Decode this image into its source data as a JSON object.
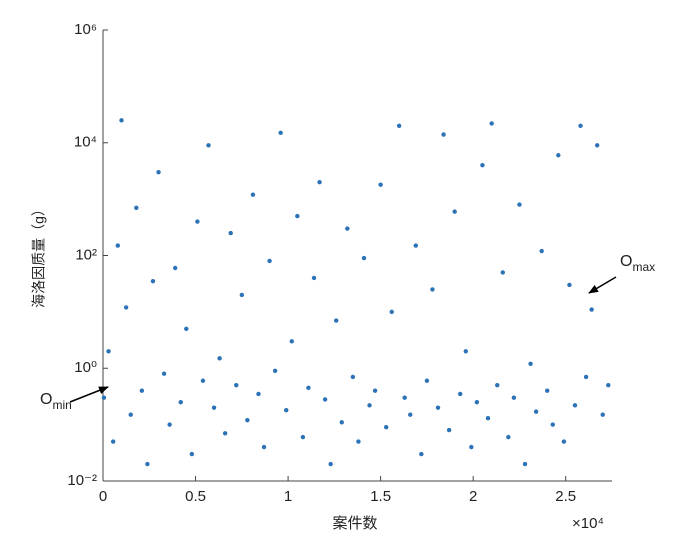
{
  "chart_data": {
    "type": "scatter",
    "xlabel": "案件数",
    "ylabel": "海洛因质量（g）",
    "x_multiplier": "×10⁴",
    "color": "#2c72b6",
    "log_y": true,
    "grid": false,
    "xlim": [
      0,
      27500
    ],
    "ylim": [
      0.01,
      1000000
    ],
    "xticks": [
      0,
      {
        "value": 5000,
        "label": "0.5"
      },
      {
        "value": 10000,
        "label": "1"
      },
      {
        "value": 15000,
        "label": "1.5"
      },
      {
        "value": 20000,
        "label": "2"
      },
      {
        "value": 25000,
        "label": "2.5"
      }
    ],
    "yticks": [
      {
        "value": 0.01,
        "label": "10⁻²"
      },
      {
        "value": 1,
        "label": "10⁰"
      },
      {
        "value": 100,
        "label": "10²"
      },
      {
        "value": 10000,
        "label": "10⁴"
      },
      {
        "value": 1000000,
        "label": "10⁶"
      }
    ],
    "annotations": [
      {
        "base": "O",
        "subscript": "min"
      },
      {
        "base": "O",
        "subscript": "max"
      }
    ],
    "x": [
      50,
      300,
      550,
      800,
      1000,
      1250,
      1500,
      1800,
      2100,
      2400,
      2700,
      3000,
      3300,
      3600,
      3900,
      4200,
      4500,
      4800,
      5100,
      5400,
      5700,
      6000,
      6300,
      6600,
      6900,
      7200,
      7500,
      7800,
      8100,
      8400,
      8700,
      9000,
      9300,
      9600,
      9900,
      10200,
      10500,
      10800,
      11100,
      11400,
      11700,
      12000,
      12300,
      12600,
      12900,
      13200,
      13500,
      13800,
      14100,
      14400,
      14700,
      15000,
      15300,
      15600,
      16000,
      16300,
      16600,
      16900,
      17200,
      17500,
      17800,
      18100,
      18400,
      18700,
      19000,
      19300,
      19600,
      19900,
      20200,
      20500,
      20800,
      21000,
      21300,
      21600,
      21900,
      22200,
      22500,
      22800,
      23100,
      23400,
      23700,
      24000,
      24300,
      24600,
      24900,
      25200,
      25500,
      25800,
      26100,
      26400,
      26700,
      27000,
      27300
    ],
    "values": [
      0.3,
      2,
      0.05,
      150,
      25000,
      12,
      0.15,
      700,
      0.4,
      0.02,
      35,
      3000,
      0.8,
      0.1,
      60,
      0.25,
      5,
      0.03,
      400,
      0.6,
      9000,
      0.2,
      1.5,
      0.07,
      250,
      0.5,
      20,
      0.12,
      1200,
      0.35,
      0.04,
      80,
      0.9,
      15000,
      0.18,
      3,
      500,
      0.06,
      0.45,
      40,
      2000,
      0.28,
      0.02,
      7,
      0.11,
      300,
      0.7,
      0.05,
      90,
      0.22,
      0.4,
      1800,
      0.09,
      10,
      20000,
      0.3,
      0.15,
      150,
      0.03,
      0.6,
      25,
      0.2,
      14000,
      0.08,
      600,
      0.35,
      2,
      0.04,
      0.25,
      4000,
      0.13,
      22000,
      0.5,
      50,
      0.06,
      0.3,
      800,
      0.02,
      1.2,
      0.17,
      120,
      0.4,
      0.1,
      6000,
      0.05,
      30,
      0.22,
      20000,
      0.7,
      11,
      9000,
      0.15,
      0.5
    ]
  }
}
